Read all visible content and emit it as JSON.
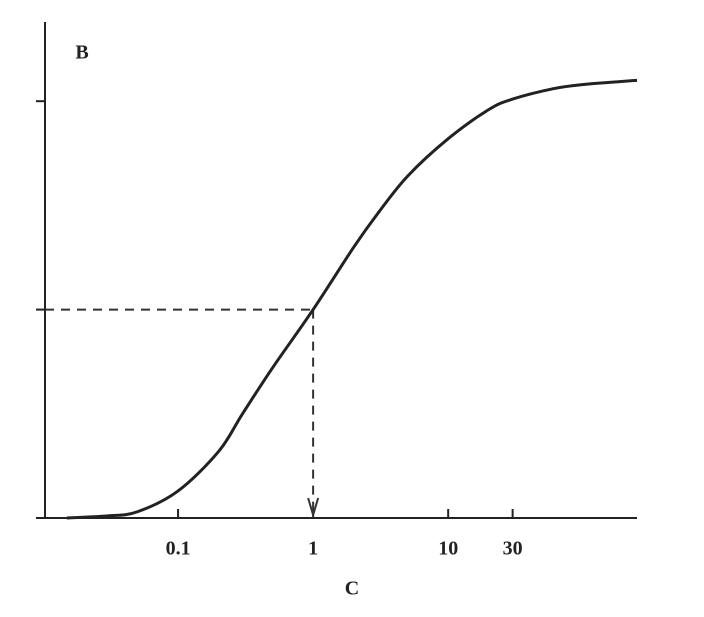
{
  "chart_data": {
    "type": "line",
    "y_label": "B",
    "x_label": "C",
    "x": [
      0.015,
      0.03,
      0.05,
      0.1,
      0.2,
      0.3,
      0.5,
      1,
      2,
      3,
      5,
      10,
      20,
      30,
      60,
      100,
      250
    ],
    "values": [
      0,
      0.5,
      1.5,
      6.5,
      16,
      25,
      36,
      50,
      65,
      73,
      82,
      91,
      98,
      100.5,
      103,
      104,
      105
    ],
    "color": "#222222",
    "xscale": "log",
    "xlim": [
      0.01,
      250
    ],
    "xticks": [
      0.1,
      1,
      10,
      30
    ],
    "ylim": [
      0,
      119
    ],
    "yticks": [
      50,
      100
    ],
    "marker": {
      "x": 1,
      "y": 50
    }
  }
}
